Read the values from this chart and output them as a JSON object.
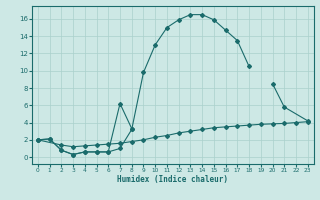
{
  "xlabel": "Humidex (Indice chaleur)",
  "bg_color": "#cde8e5",
  "grid_color": "#aad0cc",
  "line_color": "#1a6b6b",
  "xlim": [
    -0.5,
    23.5
  ],
  "ylim": [
    -0.8,
    17.5
  ],
  "xticks": [
    0,
    1,
    2,
    3,
    4,
    5,
    6,
    7,
    8,
    9,
    10,
    11,
    12,
    13,
    14,
    15,
    16,
    17,
    18,
    19,
    20,
    21,
    22,
    23
  ],
  "yticks": [
    0,
    2,
    4,
    6,
    8,
    10,
    12,
    14,
    16
  ],
  "line1_x": [
    0,
    1,
    2,
    3,
    4,
    5,
    6,
    7,
    8,
    9,
    10,
    11,
    12,
    13,
    14,
    15,
    16,
    17,
    18
  ],
  "line1_y": [
    2.0,
    2.1,
    0.8,
    0.3,
    0.6,
    0.6,
    0.6,
    1.0,
    3.2,
    9.8,
    13.0,
    15.0,
    15.9,
    16.5,
    16.5,
    15.9,
    14.7,
    13.5,
    10.5
  ],
  "line2_x": [
    0,
    1,
    2,
    3,
    4,
    5,
    6,
    7,
    8,
    20,
    21,
    23
  ],
  "line2_y": [
    2.0,
    2.1,
    0.8,
    0.3,
    0.6,
    0.6,
    0.6,
    6.2,
    3.3,
    8.5,
    5.8,
    4.2
  ],
  "line2_break": 9,
  "line3_x": [
    0,
    2,
    3,
    4,
    5,
    6,
    7,
    8,
    9,
    10,
    11,
    12,
    13,
    14,
    15,
    16,
    17,
    18,
    19,
    20,
    21,
    22,
    23
  ],
  "line3_y": [
    2.0,
    1.4,
    1.2,
    1.3,
    1.4,
    1.5,
    1.6,
    1.8,
    2.0,
    2.3,
    2.5,
    2.8,
    3.0,
    3.2,
    3.4,
    3.5,
    3.6,
    3.7,
    3.8,
    3.85,
    3.9,
    4.0,
    4.1
  ]
}
